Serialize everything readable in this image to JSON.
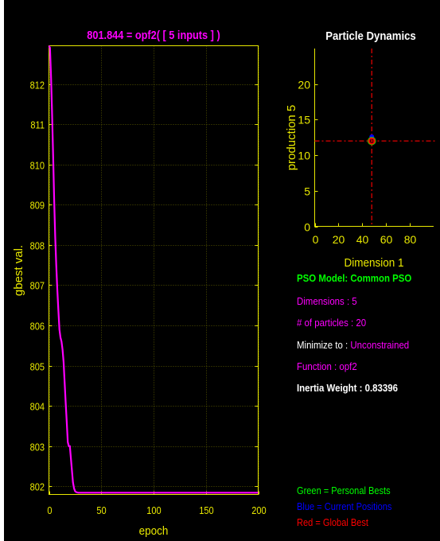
{
  "chart_data": [
    {
      "type": "line",
      "title": "801.844 = opf2( [ 5 inputs ] )",
      "xlabel": "epoch",
      "ylabel": "gbest val.",
      "xlim": [
        0,
        200
      ],
      "ylim": [
        801.8,
        812.95
      ],
      "xticks": [
        0,
        50,
        100,
        150,
        200
      ],
      "yticks": [
        802,
        803,
        804,
        805,
        806,
        807,
        808,
        809,
        810,
        811,
        812
      ],
      "grid": true,
      "series": [
        {
          "color": "#ff00ff",
          "x": [
            0,
            1,
            2,
            3,
            4,
            5,
            6,
            7,
            8,
            9,
            10,
            11,
            12,
            13,
            14,
            15,
            16,
            17,
            18,
            19,
            20,
            21,
            22,
            23,
            24,
            25,
            26,
            27,
            28,
            30,
            40,
            60,
            100,
            150,
            200
          ],
          "y": [
            812.95,
            812.9,
            812.2,
            811.3,
            810.2,
            809.1,
            808.2,
            807.5,
            806.9,
            806.4,
            805.9,
            805.7,
            805.6,
            805.4,
            805.1,
            804.6,
            804.1,
            803.6,
            803.1,
            803.0,
            803.0,
            802.7,
            802.4,
            802.1,
            801.95,
            801.88,
            801.86,
            801.85,
            801.844,
            801.844,
            801.844,
            801.844,
            801.844,
            801.844,
            801.844
          ]
        }
      ]
    },
    {
      "type": "scatter",
      "title": "Particle Dynamics",
      "xlabel": "Dimension 1",
      "ylabel": "production 5",
      "xlim": [
        0,
        100
      ],
      "ylim": [
        0,
        25
      ],
      "xticks": [
        0,
        20,
        40,
        60,
        80
      ],
      "yticks": [
        0,
        5,
        10,
        15,
        20
      ],
      "grid": false,
      "crosshair": {
        "x": 48,
        "y": 12,
        "color": "#cc0000"
      },
      "series": [
        {
          "role": "personal_best",
          "color": "#00ff00",
          "points": [
            [
              48,
              12
            ]
          ]
        },
        {
          "role": "current_position",
          "color": "#0000ff",
          "points": [
            [
              48,
              12.6
            ]
          ]
        },
        {
          "role": "global_best",
          "color": "#ff0000",
          "points": [
            [
              48,
              12
            ]
          ]
        }
      ]
    }
  ],
  "info": {
    "model": "PSO Model: Common PSO",
    "dimensions": "Dimensions : 5",
    "particles": "# of particles : 20",
    "minimize_label": "Minimize to :",
    "minimize_value": "Unconstrained",
    "function": "Function : opf2",
    "inertia": "Inertia Weight : 0.83396"
  },
  "legend": {
    "green": "Green = Personal Bests",
    "blue": "Blue  = Current Positions",
    "red": "Red   = Global Best"
  },
  "colors": {
    "axes": "#e8e800",
    "grid": "#555500",
    "magenta": "#ff00ff",
    "green": "#00ff00",
    "blue": "#0000ff",
    "red": "#ff0000",
    "white": "#ffffff"
  }
}
